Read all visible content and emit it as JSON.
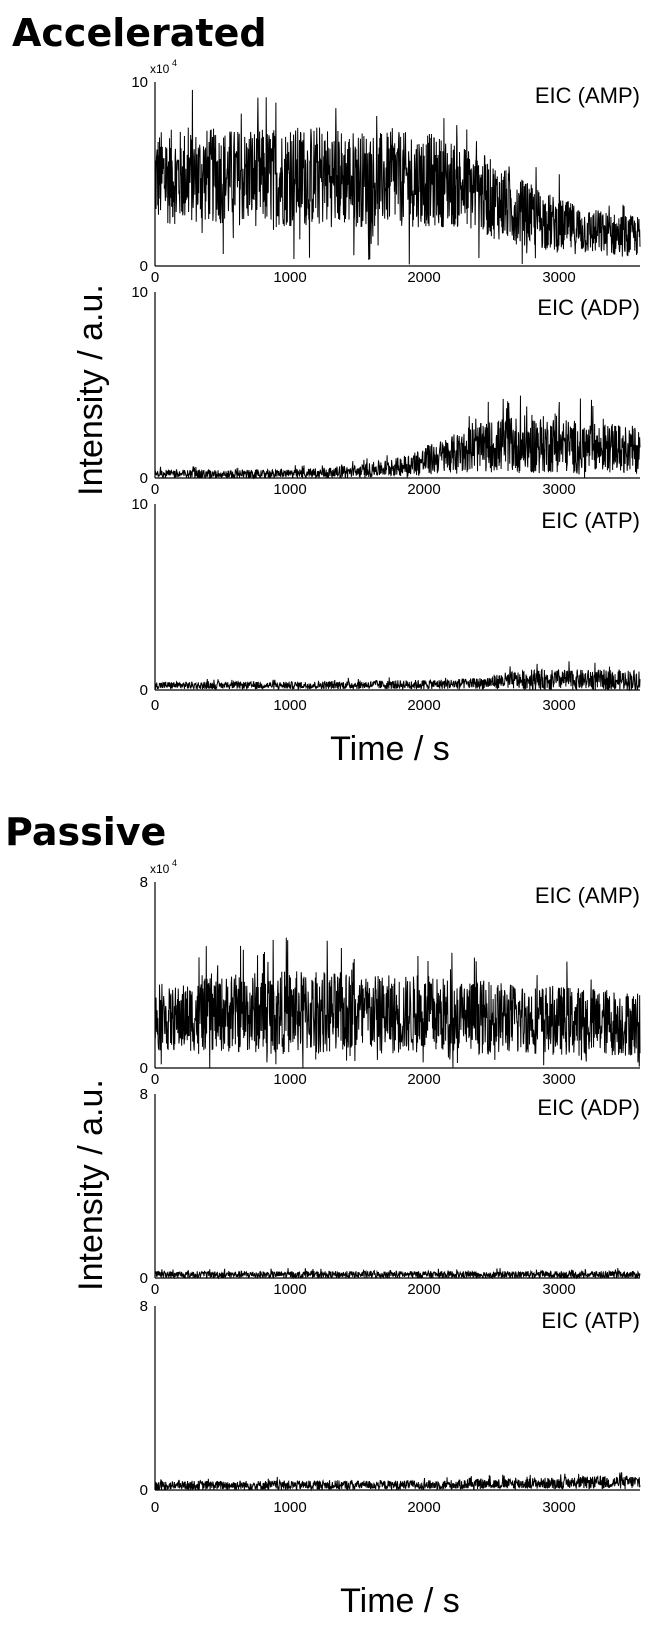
{
  "chart_data": [
    {
      "type": "line",
      "title": "Accelerated",
      "xlabel": "Time / s",
      "ylabel": "Intensity / a.u.",
      "y_multiplier": "x10",
      "y_multiplier_exp": "4",
      "xlim": [
        0,
        3600
      ],
      "x_ticks": [
        0,
        1000,
        2000,
        3000
      ],
      "panels": [
        {
          "label": "EIC (AMP)",
          "ylim": [
            0,
            10
          ],
          "y_ticks": [
            0,
            10
          ],
          "envelope": {
            "x": [
              0,
              400,
              800,
              1200,
              1600,
              2000,
              2200,
              2400,
              2600,
              2800,
              3000,
              3200,
              3400,
              3600
            ],
            "center": [
              4.8,
              4.9,
              4.8,
              4.9,
              4.7,
              4.7,
              4.5,
              4.0,
              3.3,
              2.7,
              2.2,
              1.9,
              1.7,
              1.6
            ],
            "amp": [
              2.6,
              2.6,
              2.7,
              2.8,
              2.6,
              2.6,
              2.4,
              2.3,
              2.0,
              1.7,
              1.5,
              1.3,
              1.2,
              1.1
            ]
          }
        },
        {
          "label": "EIC (ADP)",
          "ylim": [
            0,
            10
          ],
          "y_ticks": [
            0,
            10
          ],
          "envelope": {
            "x": [
              0,
              1000,
              1500,
              1800,
              2000,
              2200,
              2400,
              2600,
              2800,
              3000,
              3200,
              3400,
              3600
            ],
            "center": [
              0.2,
              0.2,
              0.35,
              0.6,
              0.9,
              1.3,
              1.6,
              1.8,
              1.8,
              1.8,
              1.6,
              1.6,
              1.5
            ],
            "amp": [
              0.25,
              0.25,
              0.35,
              0.5,
              0.8,
              1.0,
              1.3,
              1.5,
              1.6,
              1.5,
              1.4,
              1.3,
              1.3
            ]
          }
        },
        {
          "label": "EIC (ATP)",
          "ylim": [
            0,
            10
          ],
          "y_ticks": [
            0,
            10
          ],
          "envelope": {
            "x": [
              0,
              1000,
              2000,
              2400,
              2600,
              2800,
              3000,
              3200,
              3400,
              3600
            ],
            "center": [
              0.25,
              0.25,
              0.3,
              0.35,
              0.5,
              0.55,
              0.55,
              0.55,
              0.55,
              0.55
            ],
            "amp": [
              0.2,
              0.2,
              0.25,
              0.3,
              0.45,
              0.55,
              0.55,
              0.55,
              0.55,
              0.55
            ]
          }
        }
      ]
    },
    {
      "type": "line",
      "title": "Passive",
      "xlabel": "Time / s",
      "ylabel": "Intensity / a.u.",
      "y_multiplier": "x10",
      "y_multiplier_exp": "4",
      "xlim": [
        0,
        3600
      ],
      "x_ticks": [
        0,
        1000,
        2000,
        3000
      ],
      "panels": [
        {
          "label": "EIC (AMP)",
          "ylim": [
            0,
            8
          ],
          "y_ticks": [
            0,
            8
          ],
          "envelope": {
            "x": [
              0,
              400,
              800,
              1200,
              1600,
              2000,
              2400,
              2800,
              3200,
              3600
            ],
            "center": [
              2.0,
              2.3,
              2.4,
              2.4,
              2.3,
              2.3,
              2.2,
              2.1,
              2.0,
              1.9
            ],
            "amp": [
              1.3,
              1.6,
              1.8,
              1.8,
              1.7,
              1.7,
              1.6,
              1.5,
              1.5,
              1.4
            ]
          }
        },
        {
          "label": "EIC (ADP)",
          "ylim": [
            0,
            8
          ],
          "y_ticks": [
            0,
            8
          ],
          "envelope": {
            "x": [
              0,
              3600
            ],
            "center": [
              0.15,
              0.15
            ],
            "amp": [
              0.15,
              0.15
            ]
          }
        },
        {
          "label": "EIC (ATP)",
          "ylim": [
            0,
            8
          ],
          "y_ticks": [
            0,
            8
          ],
          "envelope": {
            "x": [
              0,
              2000,
              3000,
              3600
            ],
            "center": [
              0.2,
              0.22,
              0.3,
              0.35
            ],
            "amp": [
              0.2,
              0.2,
              0.25,
              0.3
            ]
          }
        }
      ]
    }
  ]
}
